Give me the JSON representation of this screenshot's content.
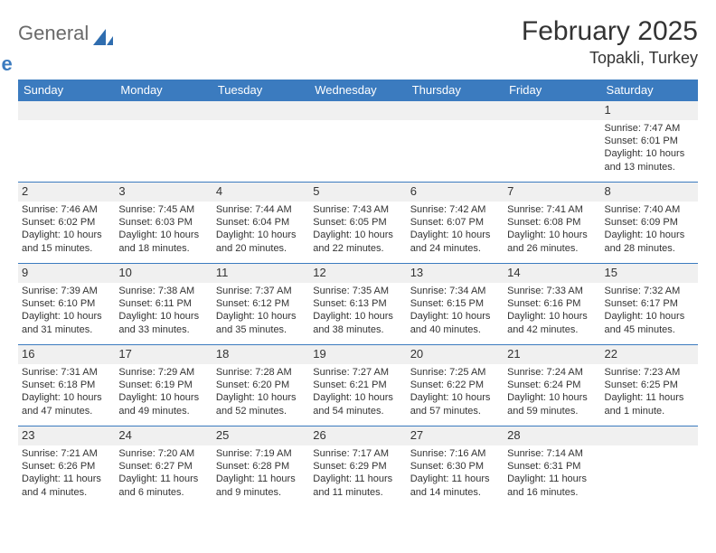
{
  "brand": {
    "line1": "General",
    "line2": "Blue"
  },
  "title": {
    "month": "February 2025",
    "location": "Topakli, Turkey"
  },
  "colors": {
    "header_bg": "#3b7bbf",
    "header_text": "#ffffff",
    "daynum_bg": "#f0f0f0",
    "body_text": "#333333",
    "rule": "#3b7bbf",
    "logo_gray": "#6a6a6a",
    "logo_blue": "#3b7bbf",
    "page_bg": "#ffffff"
  },
  "typography": {
    "month_fontsize": 30,
    "location_fontsize": 18,
    "dow_fontsize": 13,
    "daynum_fontsize": 13,
    "body_fontsize": 11
  },
  "daysOfWeek": [
    "Sunday",
    "Monday",
    "Tuesday",
    "Wednesday",
    "Thursday",
    "Friday",
    "Saturday"
  ],
  "labels": {
    "sunrise": "Sunrise:",
    "sunset": "Sunset:",
    "daylight": "Daylight:"
  },
  "weeks": [
    [
      null,
      null,
      null,
      null,
      null,
      null,
      {
        "n": "1",
        "sunrise": "7:47 AM",
        "sunset": "6:01 PM",
        "daylight": "10 hours and 13 minutes."
      }
    ],
    [
      {
        "n": "2",
        "sunrise": "7:46 AM",
        "sunset": "6:02 PM",
        "daylight": "10 hours and 15 minutes."
      },
      {
        "n": "3",
        "sunrise": "7:45 AM",
        "sunset": "6:03 PM",
        "daylight": "10 hours and 18 minutes."
      },
      {
        "n": "4",
        "sunrise": "7:44 AM",
        "sunset": "6:04 PM",
        "daylight": "10 hours and 20 minutes."
      },
      {
        "n": "5",
        "sunrise": "7:43 AM",
        "sunset": "6:05 PM",
        "daylight": "10 hours and 22 minutes."
      },
      {
        "n": "6",
        "sunrise": "7:42 AM",
        "sunset": "6:07 PM",
        "daylight": "10 hours and 24 minutes."
      },
      {
        "n": "7",
        "sunrise": "7:41 AM",
        "sunset": "6:08 PM",
        "daylight": "10 hours and 26 minutes."
      },
      {
        "n": "8",
        "sunrise": "7:40 AM",
        "sunset": "6:09 PM",
        "daylight": "10 hours and 28 minutes."
      }
    ],
    [
      {
        "n": "9",
        "sunrise": "7:39 AM",
        "sunset": "6:10 PM",
        "daylight": "10 hours and 31 minutes."
      },
      {
        "n": "10",
        "sunrise": "7:38 AM",
        "sunset": "6:11 PM",
        "daylight": "10 hours and 33 minutes."
      },
      {
        "n": "11",
        "sunrise": "7:37 AM",
        "sunset": "6:12 PM",
        "daylight": "10 hours and 35 minutes."
      },
      {
        "n": "12",
        "sunrise": "7:35 AM",
        "sunset": "6:13 PM",
        "daylight": "10 hours and 38 minutes."
      },
      {
        "n": "13",
        "sunrise": "7:34 AM",
        "sunset": "6:15 PM",
        "daylight": "10 hours and 40 minutes."
      },
      {
        "n": "14",
        "sunrise": "7:33 AM",
        "sunset": "6:16 PM",
        "daylight": "10 hours and 42 minutes."
      },
      {
        "n": "15",
        "sunrise": "7:32 AM",
        "sunset": "6:17 PM",
        "daylight": "10 hours and 45 minutes."
      }
    ],
    [
      {
        "n": "16",
        "sunrise": "7:31 AM",
        "sunset": "6:18 PM",
        "daylight": "10 hours and 47 minutes."
      },
      {
        "n": "17",
        "sunrise": "7:29 AM",
        "sunset": "6:19 PM",
        "daylight": "10 hours and 49 minutes."
      },
      {
        "n": "18",
        "sunrise": "7:28 AM",
        "sunset": "6:20 PM",
        "daylight": "10 hours and 52 minutes."
      },
      {
        "n": "19",
        "sunrise": "7:27 AM",
        "sunset": "6:21 PM",
        "daylight": "10 hours and 54 minutes."
      },
      {
        "n": "20",
        "sunrise": "7:25 AM",
        "sunset": "6:22 PM",
        "daylight": "10 hours and 57 minutes."
      },
      {
        "n": "21",
        "sunrise": "7:24 AM",
        "sunset": "6:24 PM",
        "daylight": "10 hours and 59 minutes."
      },
      {
        "n": "22",
        "sunrise": "7:23 AM",
        "sunset": "6:25 PM",
        "daylight": "11 hours and 1 minute."
      }
    ],
    [
      {
        "n": "23",
        "sunrise": "7:21 AM",
        "sunset": "6:26 PM",
        "daylight": "11 hours and 4 minutes."
      },
      {
        "n": "24",
        "sunrise": "7:20 AM",
        "sunset": "6:27 PM",
        "daylight": "11 hours and 6 minutes."
      },
      {
        "n": "25",
        "sunrise": "7:19 AM",
        "sunset": "6:28 PM",
        "daylight": "11 hours and 9 minutes."
      },
      {
        "n": "26",
        "sunrise": "7:17 AM",
        "sunset": "6:29 PM",
        "daylight": "11 hours and 11 minutes."
      },
      {
        "n": "27",
        "sunrise": "7:16 AM",
        "sunset": "6:30 PM",
        "daylight": "11 hours and 14 minutes."
      },
      {
        "n": "28",
        "sunrise": "7:14 AM",
        "sunset": "6:31 PM",
        "daylight": "11 hours and 16 minutes."
      },
      null
    ]
  ]
}
